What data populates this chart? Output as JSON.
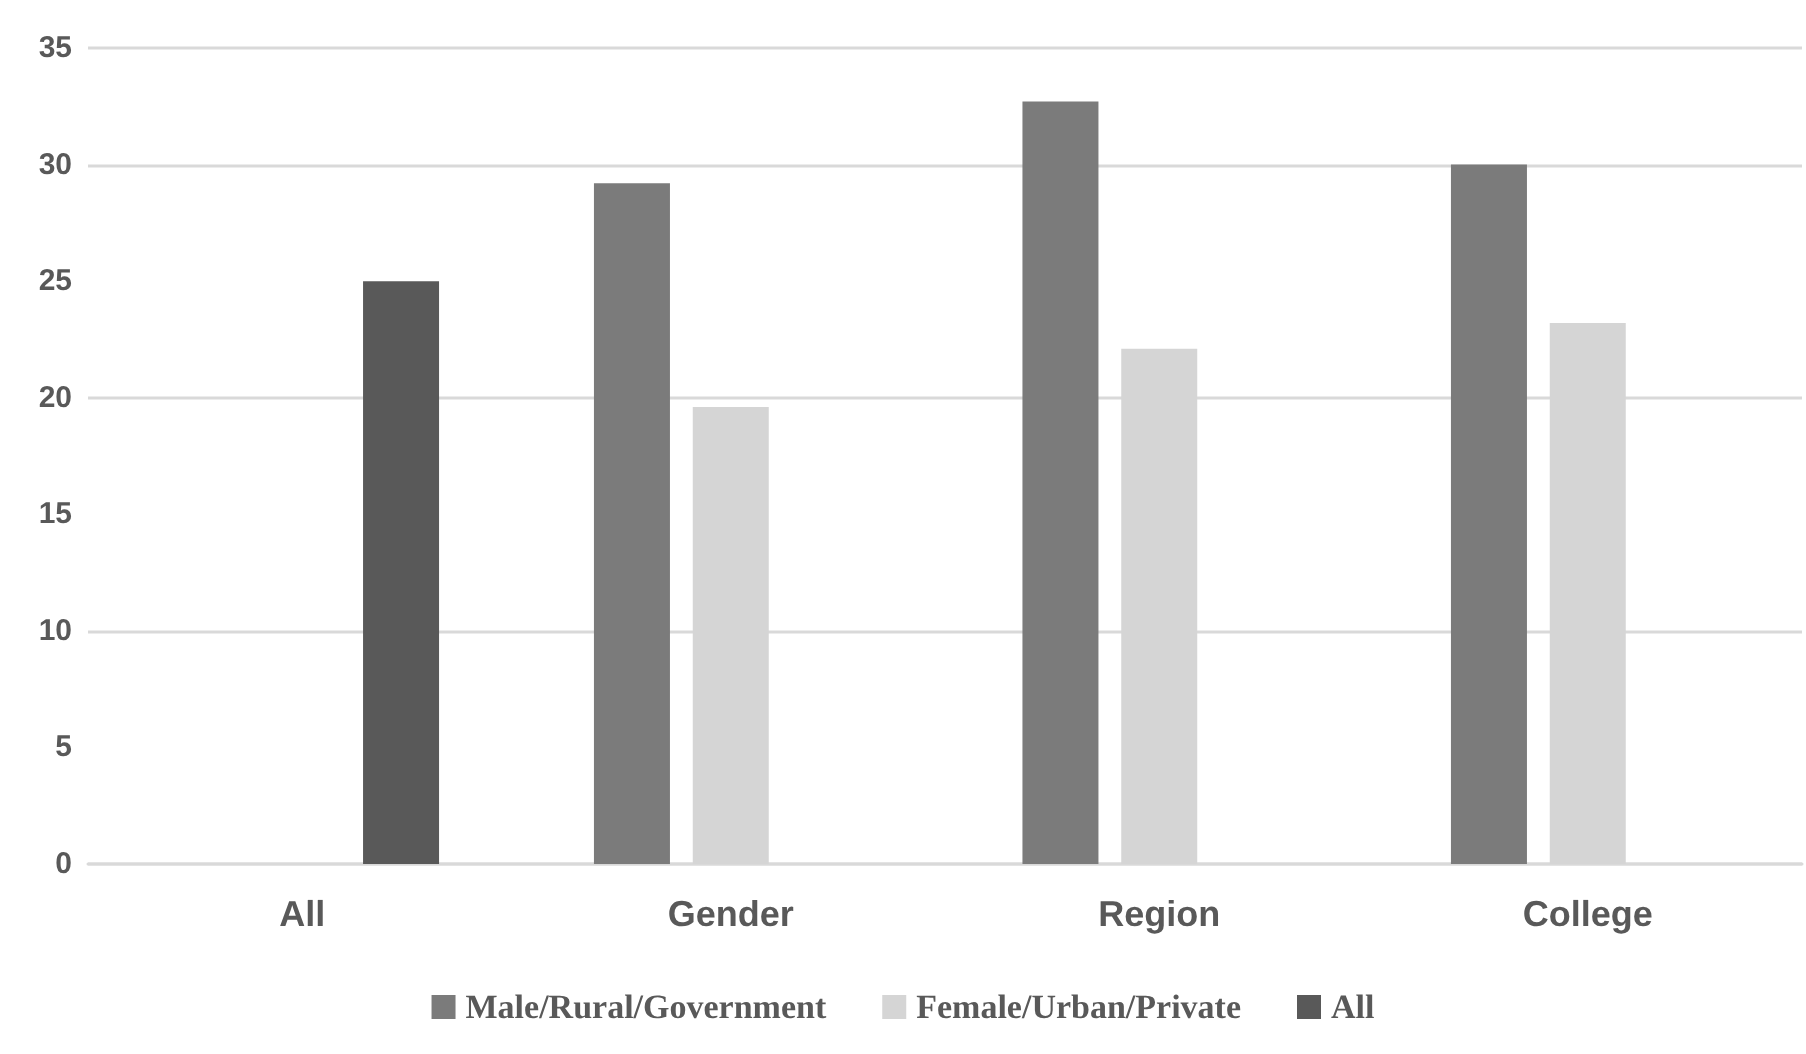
{
  "chart_data": {
    "type": "bar",
    "categories": [
      "All",
      "Gender",
      "Region",
      "College"
    ],
    "series": [
      {
        "name": "Male/Rural/Government",
        "color": "#7b7b7b",
        "values": [
          null,
          29.2,
          32.7,
          30.0
        ]
      },
      {
        "name": "Female/Urban/Private",
        "color": "#d5d5d5",
        "values": [
          null,
          19.6,
          22.1,
          23.2
        ]
      },
      {
        "name": "All",
        "color": "#595959",
        "values": [
          25.0,
          null,
          null,
          null
        ]
      }
    ],
    "ylim": [
      0,
      35
    ],
    "yticks": [
      0,
      5,
      10,
      15,
      20,
      25,
      30,
      35
    ],
    "grid": "y",
    "legend": "bottom"
  }
}
